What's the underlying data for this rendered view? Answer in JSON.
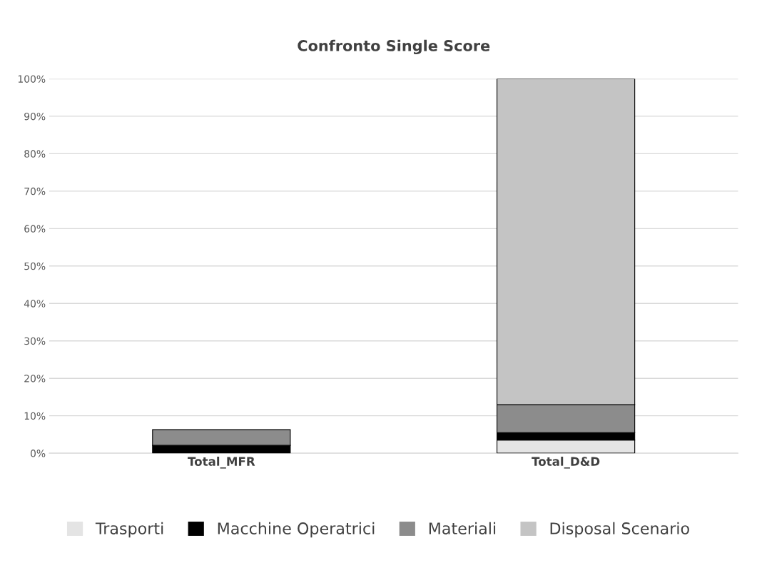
{
  "chart_data": {
    "type": "bar",
    "title": "Confronto Single Score",
    "stacked": true,
    "categories": [
      "Total_MFR",
      "Total_D&D"
    ],
    "series": [
      {
        "name": "Trasporti",
        "color": "#e4e4e4",
        "values": [
          0,
          3.5
        ]
      },
      {
        "name": "Macchine Operatrici",
        "color": "#000000",
        "values": [
          2.1,
          2.0
        ]
      },
      {
        "name": "Materiali",
        "color": "#8c8c8c",
        "values": [
          4.2,
          7.5
        ]
      },
      {
        "name": "Disposal Scenario",
        "color": "#c4c4c4",
        "values": [
          0,
          87.0
        ]
      }
    ],
    "ylim": [
      0,
      100
    ],
    "yticks": [
      {
        "value": 0,
        "label": "0%"
      },
      {
        "value": 10,
        "label": "10%"
      },
      {
        "value": 20,
        "label": "20%"
      },
      {
        "value": 30,
        "label": "30%"
      },
      {
        "value": 40,
        "label": "40%"
      },
      {
        "value": 50,
        "label": "50%"
      },
      {
        "value": 60,
        "label": "60%"
      },
      {
        "value": 70,
        "label": "70%"
      },
      {
        "value": 80,
        "label": "80%"
      },
      {
        "value": 90,
        "label": "90%"
      },
      {
        "value": 100,
        "label": "100%"
      }
    ],
    "grid": "y",
    "legend": "bottom"
  }
}
